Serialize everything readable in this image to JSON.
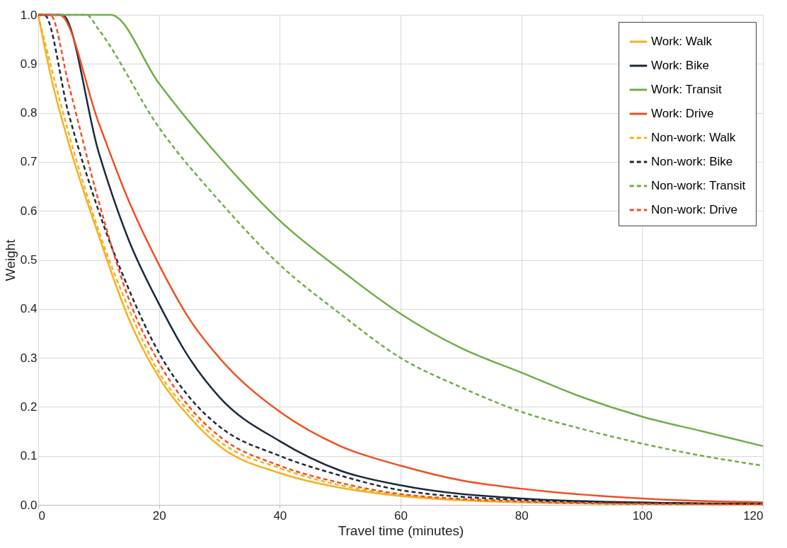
{
  "chart_data": {
    "type": "line",
    "xlabel": "Travel time (minutes)",
    "ylabel": "Weight",
    "xlim": [
      0,
      120
    ],
    "xticks": [
      0,
      20,
      40,
      60,
      80,
      100,
      120
    ],
    "ylim": [
      0,
      1
    ],
    "yticks": [
      {
        "value": 0,
        "label": "0.0"
      },
      0.1,
      0.2,
      0.3,
      0.4,
      0.5,
      0.6,
      0.7,
      0.8,
      0.9,
      {
        "value": 1,
        "label": "1.0"
      }
    ],
    "grid": true,
    "legend": "top right",
    "marker": "none",
    "series": [
      {
        "name": "Work: Walk",
        "color": "#f5b120",
        "line_style": "solid",
        "x": [
          0,
          2,
          5,
          10,
          15,
          20,
          25,
          30,
          40,
          50,
          60,
          80,
          100,
          120
        ],
        "values": [
          1.0,
          0.88,
          0.74,
          0.55,
          0.38,
          0.26,
          0.18,
          0.12,
          0.065,
          0.035,
          0.018,
          0.005,
          0.002,
          0.001
        ]
      },
      {
        "name": "Work: Bike",
        "color": "#1b2a3a",
        "line_style": "solid",
        "x": [
          0,
          4,
          10,
          15,
          20,
          25,
          30,
          40,
          50,
          60,
          80,
          100,
          120
        ],
        "values": [
          1.0,
          1.0,
          0.72,
          0.54,
          0.41,
          0.3,
          0.22,
          0.13,
          0.07,
          0.04,
          0.013,
          0.005,
          0.002
        ]
      },
      {
        "name": "Work: Transit",
        "color": "#70ad47",
        "line_style": "solid",
        "x": [
          0,
          12,
          20,
          30,
          40,
          50,
          60,
          70,
          80,
          90,
          100,
          110,
          120
        ],
        "values": [
          1.0,
          1.0,
          0.86,
          0.71,
          0.58,
          0.48,
          0.39,
          0.32,
          0.27,
          0.22,
          0.18,
          0.15,
          0.12
        ]
      },
      {
        "name": "Work: Drive",
        "color": "#f04e23",
        "line_style": "solid",
        "x": [
          0,
          3.5,
          10,
          15,
          20,
          25,
          30,
          40,
          50,
          60,
          70,
          80,
          100,
          120
        ],
        "values": [
          1.0,
          1.0,
          0.78,
          0.62,
          0.49,
          0.38,
          0.3,
          0.19,
          0.12,
          0.08,
          0.05,
          0.033,
          0.013,
          0.005
        ]
      },
      {
        "name": "Non-work: Walk",
        "color": "#f5b120",
        "line_style": "dashed",
        "x": [
          0,
          5,
          10,
          15,
          20,
          25,
          30,
          40,
          50,
          60,
          80,
          100,
          120
        ],
        "values": [
          1.0,
          0.76,
          0.56,
          0.4,
          0.27,
          0.19,
          0.13,
          0.075,
          0.04,
          0.02,
          0.006,
          0.002,
          0.001
        ]
      },
      {
        "name": "Non-work: Bike",
        "color": "#1b2a3a",
        "line_style": "dashed",
        "x": [
          0,
          1,
          5,
          10,
          15,
          20,
          25,
          30,
          40,
          50,
          60,
          80,
          100,
          120
        ],
        "values": [
          1.0,
          1.0,
          0.8,
          0.6,
          0.44,
          0.31,
          0.22,
          0.16,
          0.1,
          0.06,
          0.03,
          0.01,
          0.004,
          0.002
        ]
      },
      {
        "name": "Non-work: Transit",
        "color": "#70ad47",
        "line_style": "dashed",
        "x": [
          0,
          8,
          10,
          20,
          30,
          40,
          50,
          60,
          70,
          80,
          90,
          100,
          110,
          120
        ],
        "values": [
          1.0,
          1.0,
          0.97,
          0.77,
          0.62,
          0.49,
          0.39,
          0.3,
          0.24,
          0.19,
          0.155,
          0.125,
          0.1,
          0.08
        ]
      },
      {
        "name": "Non-work: Drive",
        "color": "#f04e23",
        "line_style": "dashed",
        "x": [
          0,
          2,
          5,
          10,
          15,
          20,
          25,
          30,
          40,
          50,
          60,
          80,
          100,
          120
        ],
        "values": [
          1.0,
          1.0,
          0.86,
          0.62,
          0.42,
          0.29,
          0.2,
          0.14,
          0.08,
          0.045,
          0.022,
          0.007,
          0.002,
          0.001
        ]
      }
    ]
  }
}
